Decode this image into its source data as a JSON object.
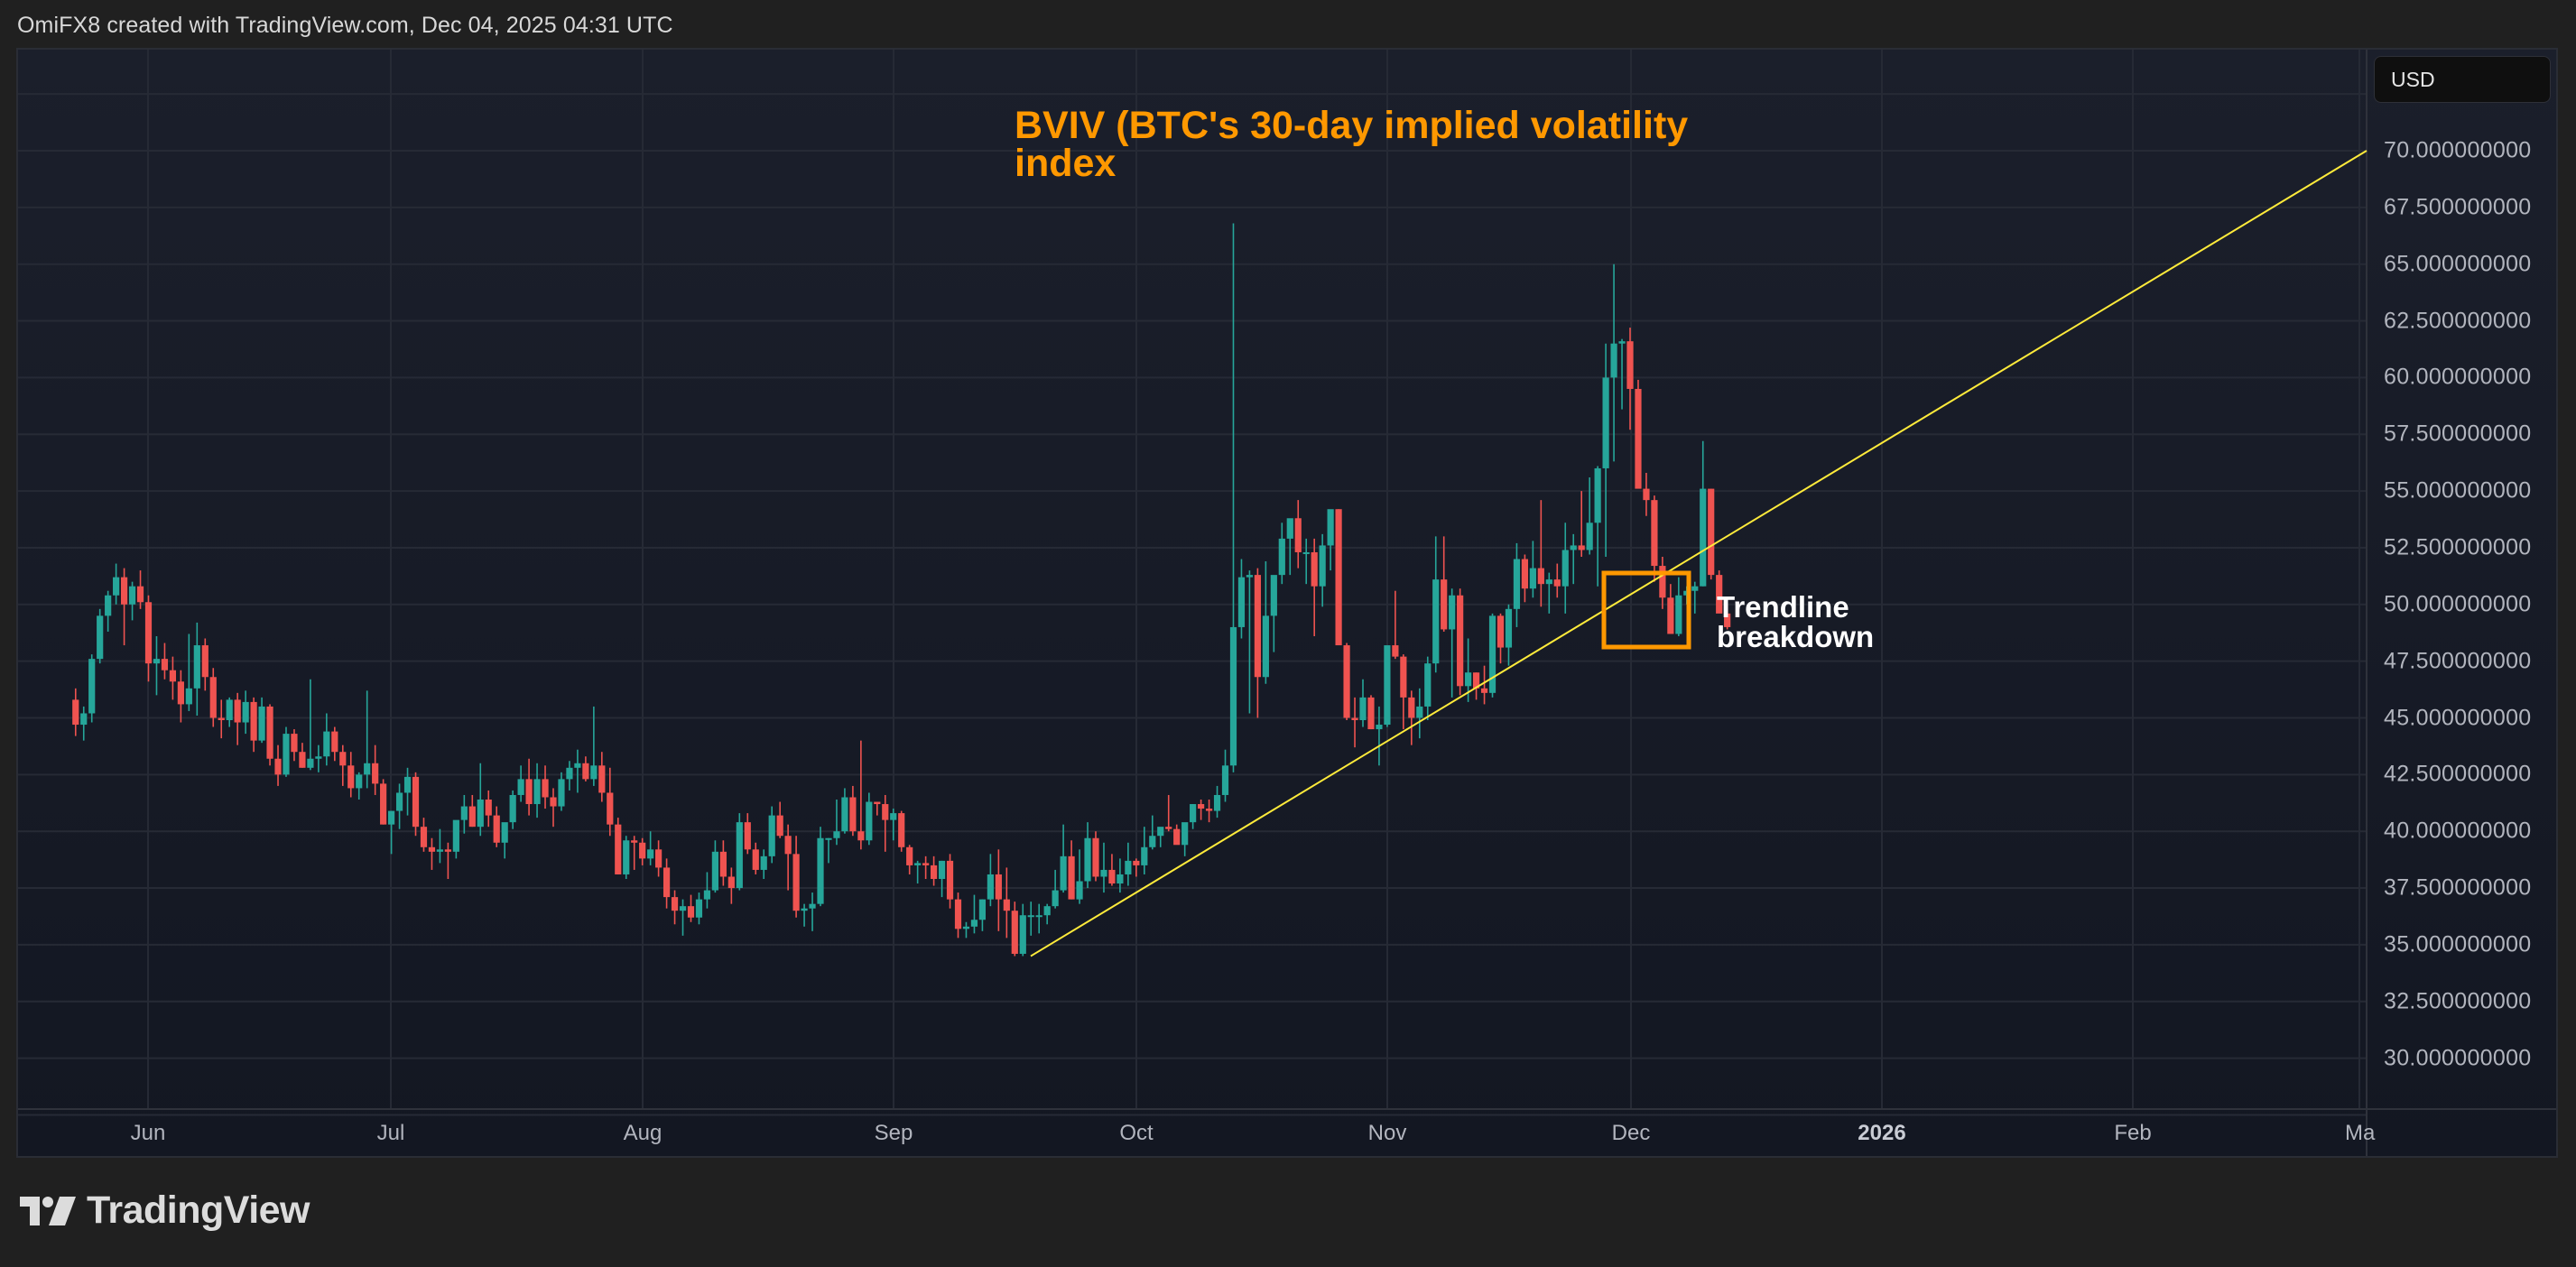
{
  "header": {
    "credit": "OmiFX8 created with TradingView.com, Dec 04, 2025 04:31 UTC"
  },
  "currency_button": {
    "label": "USD"
  },
  "annotations": {
    "title": "BVIV (BTC's 30-day implied volatility index",
    "note_line1": "Trendline",
    "note_line2": "breakdown"
  },
  "brand": {
    "name": "TradingView",
    "icon": "tradingview-logo-icon"
  },
  "colors": {
    "up": "#26a69a",
    "down": "#ef5350",
    "trendline": "#ffeb3b",
    "annotation": "#ff9800",
    "grid": "#262a35",
    "background": "#181c27"
  },
  "price_axis": [
    "70.000000000",
    "67.500000000",
    "65.000000000",
    "62.500000000",
    "60.000000000",
    "57.500000000",
    "55.000000000",
    "52.500000000",
    "50.000000000",
    "47.500000000",
    "45.000000000",
    "42.500000000",
    "40.000000000",
    "37.500000000",
    "35.000000000",
    "32.500000000",
    "30.000000000"
  ],
  "time_axis": [
    {
      "label": "Jun",
      "bold": false
    },
    {
      "label": "Jul",
      "bold": false
    },
    {
      "label": "Aug",
      "bold": false
    },
    {
      "label": "Sep",
      "bold": false
    },
    {
      "label": "Oct",
      "bold": false
    },
    {
      "label": "Nov",
      "bold": false
    },
    {
      "label": "Dec",
      "bold": false
    },
    {
      "label": "2026",
      "bold": true
    },
    {
      "label": "Feb",
      "bold": false
    },
    {
      "label": "Ma",
      "bold": false
    }
  ],
  "chart_data": {
    "type": "candlestick",
    "title": "BVIV (BTC's 30-day implied volatility index",
    "xlabel": "",
    "ylabel": "USD",
    "ylim": [
      27.5,
      72.5
    ],
    "x_range": [
      "2025-05-23",
      "2026-03-01"
    ],
    "grid": true,
    "start_date": "2025-05-23",
    "columns": [
      "open",
      "high",
      "low",
      "close"
    ],
    "candles": [
      [
        45.8,
        46.3,
        44.2,
        44.7
      ],
      [
        44.7,
        45.5,
        44.0,
        45.2
      ],
      [
        45.2,
        47.8,
        44.8,
        47.6
      ],
      [
        47.6,
        49.8,
        47.4,
        49.5
      ],
      [
        49.5,
        50.6,
        48.8,
        50.4
      ],
      [
        50.4,
        51.8,
        50.0,
        51.2
      ],
      [
        51.2,
        51.6,
        48.2,
        50.0
      ],
      [
        50.0,
        51.0,
        49.3,
        50.8
      ],
      [
        50.8,
        51.5,
        49.8,
        50.1
      ],
      [
        50.1,
        50.4,
        46.6,
        47.4
      ],
      [
        47.4,
        48.6,
        46.0,
        47.6
      ],
      [
        47.6,
        48.3,
        46.7,
        47.1
      ],
      [
        47.1,
        47.7,
        45.8,
        46.6
      ],
      [
        46.6,
        47.1,
        44.8,
        45.6
      ],
      [
        45.6,
        48.7,
        45.3,
        46.3
      ],
      [
        46.3,
        49.2,
        45.1,
        48.2
      ],
      [
        48.2,
        48.5,
        46.2,
        46.8
      ],
      [
        46.8,
        47.2,
        44.6,
        45.0
      ],
      [
        45.0,
        45.8,
        44.1,
        44.9
      ],
      [
        44.9,
        45.9,
        44.6,
        45.8
      ],
      [
        45.8,
        46.1,
        43.8,
        44.8
      ],
      [
        44.8,
        46.2,
        44.3,
        45.7
      ],
      [
        45.7,
        45.9,
        43.5,
        44.0
      ],
      [
        44.0,
        45.9,
        43.9,
        45.5
      ],
      [
        45.5,
        45.6,
        42.9,
        43.2
      ],
      [
        43.2,
        43.8,
        42.0,
        42.5
      ],
      [
        42.5,
        44.6,
        42.4,
        44.3
      ],
      [
        44.3,
        44.5,
        43.1,
        43.5
      ],
      [
        43.5,
        43.9,
        42.8,
        42.8
      ],
      [
        42.8,
        46.7,
        42.7,
        43.2
      ],
      [
        43.2,
        43.8,
        42.6,
        43.3
      ],
      [
        43.3,
        45.2,
        42.9,
        44.4
      ],
      [
        44.4,
        44.6,
        43.1,
        43.5
      ],
      [
        43.5,
        43.8,
        42.0,
        42.9
      ],
      [
        42.9,
        43.5,
        41.5,
        41.9
      ],
      [
        41.9,
        42.6,
        41.4,
        42.5
      ],
      [
        42.5,
        46.2,
        41.9,
        43.0
      ],
      [
        43.0,
        43.8,
        41.6,
        42.1
      ],
      [
        42.1,
        42.3,
        40.3,
        40.3
      ],
      [
        40.3,
        40.9,
        39.0,
        40.9
      ],
      [
        40.9,
        42.1,
        40.1,
        41.7
      ],
      [
        41.7,
        42.8,
        40.7,
        42.4
      ],
      [
        42.4,
        42.6,
        39.8,
        40.2
      ],
      [
        40.2,
        40.6,
        39.1,
        39.3
      ],
      [
        39.3,
        39.7,
        38.3,
        39.1
      ],
      [
        39.1,
        40.1,
        38.6,
        39.2
      ],
      [
        39.2,
        39.5,
        37.9,
        39.1
      ],
      [
        39.1,
        40.4,
        38.8,
        40.5
      ],
      [
        40.5,
        41.6,
        39.9,
        41.1
      ],
      [
        41.1,
        41.6,
        40.2,
        40.2
      ],
      [
        40.2,
        43.0,
        39.8,
        41.4
      ],
      [
        41.4,
        41.8,
        40.2,
        40.7
      ],
      [
        40.7,
        41.1,
        39.3,
        39.5
      ],
      [
        39.5,
        40.3,
        38.8,
        40.4
      ],
      [
        40.4,
        41.8,
        40.1,
        41.6
      ],
      [
        41.6,
        42.9,
        41.3,
        42.3
      ],
      [
        42.3,
        43.2,
        40.7,
        41.2
      ],
      [
        41.2,
        43.0,
        40.6,
        42.3
      ],
      [
        42.3,
        42.9,
        41.0,
        41.5
      ],
      [
        41.5,
        41.9,
        40.2,
        41.1
      ],
      [
        41.1,
        42.6,
        40.9,
        42.3
      ],
      [
        42.3,
        43.1,
        41.8,
        42.8
      ],
      [
        42.8,
        43.6,
        41.7,
        43.0
      ],
      [
        43.0,
        43.3,
        42.2,
        42.3
      ],
      [
        42.3,
        45.5,
        42.0,
        42.9
      ],
      [
        42.9,
        43.5,
        41.3,
        41.7
      ],
      [
        41.7,
        42.8,
        39.8,
        40.3
      ],
      [
        40.3,
        40.6,
        38.1,
        38.1
      ],
      [
        38.1,
        39.8,
        37.9,
        39.6
      ],
      [
        39.6,
        39.8,
        38.3,
        39.5
      ],
      [
        39.5,
        39.7,
        38.5,
        38.8
      ],
      [
        38.8,
        40.0,
        38.5,
        39.2
      ],
      [
        39.2,
        39.6,
        38.0,
        38.4
      ],
      [
        38.4,
        38.8,
        36.6,
        37.1
      ],
      [
        37.1,
        37.4,
        35.9,
        36.5
      ],
      [
        36.5,
        37.0,
        35.4,
        36.7
      ],
      [
        36.7,
        37.2,
        36.0,
        36.2
      ],
      [
        36.2,
        37.3,
        35.9,
        37.0
      ],
      [
        37.0,
        38.2,
        36.6,
        37.4
      ],
      [
        37.4,
        39.6,
        37.3,
        39.1
      ],
      [
        39.1,
        39.6,
        37.6,
        38.0
      ],
      [
        38.0,
        38.4,
        36.8,
        37.5
      ],
      [
        37.5,
        40.8,
        37.4,
        40.4
      ],
      [
        40.4,
        40.8,
        39.0,
        39.2
      ],
      [
        39.2,
        39.5,
        38.1,
        38.3
      ],
      [
        38.3,
        39.2,
        37.9,
        38.9
      ],
      [
        38.9,
        41.1,
        38.6,
        40.7
      ],
      [
        40.7,
        41.3,
        39.7,
        39.8
      ],
      [
        39.8,
        40.3,
        37.4,
        39.0
      ],
      [
        39.0,
        39.8,
        36.2,
        36.5
      ],
      [
        36.5,
        36.8,
        35.8,
        36.6
      ],
      [
        36.6,
        37.3,
        35.6,
        36.8
      ],
      [
        36.8,
        40.2,
        36.7,
        39.7
      ],
      [
        39.7,
        39.7,
        38.6,
        39.7
      ],
      [
        39.7,
        41.4,
        39.4,
        40.0
      ],
      [
        40.0,
        41.9,
        39.9,
        41.5
      ],
      [
        41.5,
        42.0,
        39.8,
        40.0
      ],
      [
        40.0,
        44.0,
        39.2,
        39.6
      ],
      [
        39.6,
        41.7,
        39.4,
        41.3
      ],
      [
        41.3,
        41.3,
        40.7,
        41.2
      ],
      [
        41.2,
        41.6,
        39.1,
        40.5
      ],
      [
        40.5,
        41.0,
        39.6,
        40.8
      ],
      [
        40.8,
        40.9,
        39.1,
        39.3
      ],
      [
        39.3,
        39.4,
        38.1,
        38.5
      ],
      [
        38.5,
        38.7,
        37.7,
        38.6
      ],
      [
        38.6,
        38.9,
        37.9,
        38.5
      ],
      [
        38.5,
        38.9,
        37.6,
        37.9
      ],
      [
        37.9,
        38.7,
        37.1,
        38.7
      ],
      [
        38.7,
        39.0,
        36.6,
        37.0
      ],
      [
        37.0,
        37.3,
        35.3,
        35.7
      ],
      [
        35.7,
        36.0,
        35.3,
        35.8
      ],
      [
        35.8,
        37.2,
        35.5,
        36.1
      ],
      [
        36.1,
        37.0,
        35.6,
        37.0
      ],
      [
        37.0,
        39.0,
        36.7,
        38.1
      ],
      [
        38.1,
        39.2,
        35.6,
        37.0
      ],
      [
        37.0,
        38.4,
        35.3,
        36.5
      ],
      [
        36.5,
        36.9,
        34.5,
        34.6
      ],
      [
        34.6,
        36.8,
        34.5,
        36.3
      ],
      [
        36.3,
        36.9,
        35.4,
        36.3
      ],
      [
        36.3,
        36.8,
        35.5,
        36.3
      ],
      [
        36.3,
        36.8,
        35.9,
        36.7
      ],
      [
        36.7,
        38.3,
        36.6,
        37.4
      ],
      [
        37.4,
        40.3,
        37.3,
        38.9
      ],
      [
        38.9,
        39.6,
        37.0,
        37.0
      ],
      [
        37.0,
        39.2,
        36.8,
        37.8
      ],
      [
        37.8,
        40.4,
        37.5,
        39.7
      ],
      [
        39.7,
        40.0,
        37.8,
        38.0
      ],
      [
        38.0,
        39.5,
        37.3,
        38.3
      ],
      [
        38.3,
        39.0,
        37.6,
        37.7
      ],
      [
        37.7,
        38.8,
        37.3,
        38.1
      ],
      [
        38.1,
        39.5,
        37.6,
        38.7
      ],
      [
        38.7,
        38.8,
        38.0,
        38.5
      ],
      [
        38.5,
        40.2,
        38.1,
        39.3
      ],
      [
        39.3,
        40.7,
        39.2,
        39.8
      ],
      [
        39.8,
        40.1,
        39.3,
        40.2
      ],
      [
        40.2,
        41.6,
        40.0,
        40.1
      ],
      [
        40.1,
        40.3,
        39.5,
        39.4
      ],
      [
        39.4,
        40.1,
        38.9,
        40.4
      ],
      [
        40.4,
        41.2,
        40.1,
        41.2
      ],
      [
        41.2,
        41.4,
        40.5,
        41.0
      ],
      [
        41.0,
        41.4,
        40.4,
        40.9
      ],
      [
        40.9,
        42.0,
        40.6,
        41.6
      ],
      [
        41.6,
        43.6,
        41.3,
        42.9
      ],
      [
        42.9,
        66.8,
        42.6,
        49.0
      ],
      [
        49.0,
        52.0,
        48.5,
        51.2
      ],
      [
        51.2,
        51.5,
        45.2,
        51.3
      ],
      [
        51.3,
        51.6,
        45.0,
        46.8
      ],
      [
        46.8,
        51.9,
        46.5,
        49.5
      ],
      [
        49.5,
        50.6,
        47.9,
        51.3
      ],
      [
        51.3,
        53.6,
        50.9,
        52.9
      ],
      [
        52.9,
        53.7,
        51.3,
        53.8
      ],
      [
        53.8,
        54.6,
        51.6,
        52.3
      ],
      [
        52.3,
        52.9,
        50.9,
        52.3
      ],
      [
        52.3,
        52.9,
        48.6,
        50.8
      ],
      [
        50.8,
        53.1,
        49.9,
        52.6
      ],
      [
        52.6,
        54.0,
        51.5,
        54.2
      ],
      [
        54.2,
        54.2,
        48.2,
        48.2
      ],
      [
        48.2,
        48.3,
        44.9,
        45.0
      ],
      [
        45.0,
        45.9,
        43.7,
        44.9
      ],
      [
        44.9,
        46.7,
        44.6,
        45.9
      ],
      [
        45.9,
        46.0,
        44.5,
        44.5
      ],
      [
        44.5,
        45.5,
        42.9,
        44.7
      ],
      [
        44.7,
        48.0,
        44.6,
        48.2
      ],
      [
        48.2,
        50.6,
        47.6,
        47.7
      ],
      [
        47.7,
        47.8,
        44.5,
        45.9
      ],
      [
        45.9,
        46.2,
        43.8,
        45.0
      ],
      [
        45.0,
        46.3,
        44.1,
        45.5
      ],
      [
        45.5,
        47.7,
        44.9,
        47.4
      ],
      [
        47.4,
        53.0,
        47.0,
        51.1
      ],
      [
        51.1,
        53.0,
        48.8,
        48.9
      ],
      [
        48.9,
        50.7,
        45.9,
        50.4
      ],
      [
        50.4,
        50.7,
        46.0,
        46.4
      ],
      [
        46.4,
        48.5,
        45.7,
        47.0
      ],
      [
        47.0,
        47.0,
        45.8,
        46.3
      ],
      [
        46.3,
        47.3,
        45.6,
        46.1
      ],
      [
        46.1,
        49.6,
        45.9,
        49.5
      ],
      [
        49.5,
        49.6,
        47.4,
        48.1
      ],
      [
        48.1,
        50.0,
        47.3,
        49.8
      ],
      [
        49.8,
        52.7,
        49.0,
        52.0
      ],
      [
        52.0,
        52.2,
        50.1,
        50.7
      ],
      [
        50.7,
        52.8,
        50.3,
        51.6
      ],
      [
        51.6,
        54.6,
        49.9,
        50.9
      ],
      [
        50.9,
        51.4,
        49.6,
        51.1
      ],
      [
        51.1,
        51.8,
        50.3,
        50.8
      ],
      [
        50.8,
        53.6,
        49.6,
        52.4
      ],
      [
        52.4,
        53.1,
        50.9,
        52.6
      ],
      [
        52.6,
        55.0,
        52.1,
        52.4
      ],
      [
        52.4,
        55.6,
        52.2,
        53.6
      ],
      [
        53.6,
        56.1,
        50.8,
        56.0
      ],
      [
        56.0,
        61.5,
        52.1,
        60.0
      ],
      [
        60.0,
        65.0,
        56.3,
        61.5
      ],
      [
        61.5,
        61.7,
        58.6,
        61.6
      ],
      [
        61.6,
        62.2,
        57.7,
        59.5
      ],
      [
        59.5,
        59.9,
        55.9,
        55.1
      ],
      [
        55.1,
        55.8,
        53.9,
        54.6
      ],
      [
        54.6,
        54.8,
        51.0,
        51.7
      ],
      [
        51.7,
        52.1,
        49.8,
        50.3
      ],
      [
        50.3,
        50.9,
        48.7,
        48.7
      ],
      [
        48.7,
        51.2,
        48.6,
        50.4
      ],
      [
        50.4,
        50.8,
        50.0,
        50.6
      ],
      [
        50.6,
        51.0,
        49.6,
        50.8
      ],
      [
        50.8,
        57.2,
        50.8,
        55.1
      ],
      [
        55.1,
        55.1,
        51.1,
        51.3
      ],
      [
        51.3,
        51.5,
        49.7,
        49.6
      ],
      [
        49.6,
        50.0,
        48.9,
        49.0
      ]
    ],
    "trendline": {
      "start": {
        "x": 1142,
        "value": 34.5
      },
      "end": {
        "x": 2622,
        "value": 70.0
      }
    },
    "highlight_box": {
      "x": 1777,
      "y": 635,
      "w": 94,
      "h": 82
    }
  }
}
